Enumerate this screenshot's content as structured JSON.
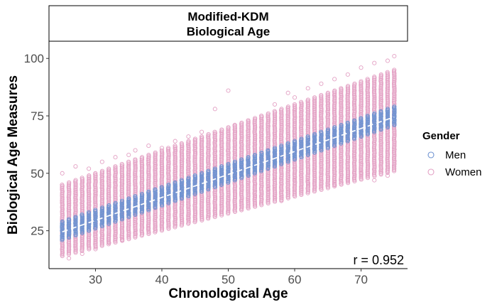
{
  "chart_data": {
    "type": "scatter",
    "title_line1": "Modified-KDM",
    "title_line2": "Biological Age",
    "xlabel": "Chronological Age",
    "ylabel": "Biological Age Measures",
    "xlim": [
      23,
      77
    ],
    "ylim": [
      8.5,
      107.5
    ],
    "x_ticks": [
      30,
      40,
      50,
      60,
      70
    ],
    "y_ticks": [
      25,
      50,
      75,
      100
    ],
    "grid": false,
    "legend": {
      "title": "Gender",
      "position": "right",
      "entries": [
        "Men",
        "Women"
      ]
    },
    "annotation": "r = 0.952",
    "trend_line": {
      "style": "dashed",
      "color": "#ffffff",
      "x": [
        25,
        75
      ],
      "y": [
        24.5,
        74.5
      ]
    },
    "series": [
      {
        "name": "Men",
        "color": "#6f93d1",
        "x_range": [
          25,
          75
        ],
        "lower": {
          "x": [
            25,
            75
          ],
          "y": [
            21,
            71
          ]
        },
        "upper": {
          "x": [
            25,
            75
          ],
          "y": [
            29,
            79
          ]
        }
      },
      {
        "name": "Women",
        "color": "#e3a1c4",
        "x_range": [
          25,
          75
        ],
        "lower": {
          "x": [
            25,
            75
          ],
          "y": [
            14,
            51
          ]
        },
        "upper": {
          "x": [
            25,
            75
          ],
          "y": [
            45,
            95
          ]
        },
        "outliers": [
          [
            25,
            50
          ],
          [
            27,
            53
          ],
          [
            29,
            52
          ],
          [
            31,
            55
          ],
          [
            33,
            57
          ],
          [
            35,
            58
          ],
          [
            36,
            60
          ],
          [
            38,
            62
          ],
          [
            40,
            61
          ],
          [
            42,
            64
          ],
          [
            44,
            66
          ],
          [
            46,
            68
          ],
          [
            48,
            78
          ],
          [
            50,
            86
          ],
          [
            51,
            71
          ],
          [
            53,
            73
          ],
          [
            55,
            75
          ],
          [
            57,
            80
          ],
          [
            59,
            85
          ],
          [
            60,
            83
          ],
          [
            62,
            87
          ],
          [
            64,
            89
          ],
          [
            66,
            91
          ],
          [
            68,
            93
          ],
          [
            70,
            96
          ],
          [
            72,
            98
          ],
          [
            74,
            99
          ],
          [
            75,
            101
          ],
          [
            26,
            13
          ],
          [
            28,
            15
          ],
          [
            30,
            17
          ],
          [
            32,
            20
          ],
          [
            34,
            21
          ],
          [
            36,
            24
          ],
          [
            38,
            26
          ],
          [
            40,
            28
          ],
          [
            44,
            32
          ],
          [
            48,
            34
          ],
          [
            52,
            38
          ],
          [
            54,
            40
          ],
          [
            56,
            43
          ],
          [
            58,
            38
          ],
          [
            60,
            47
          ],
          [
            62,
            46
          ],
          [
            66,
            45
          ],
          [
            68,
            47
          ],
          [
            70,
            50
          ],
          [
            72,
            47
          ],
          [
            74,
            49
          ]
        ]
      }
    ]
  }
}
